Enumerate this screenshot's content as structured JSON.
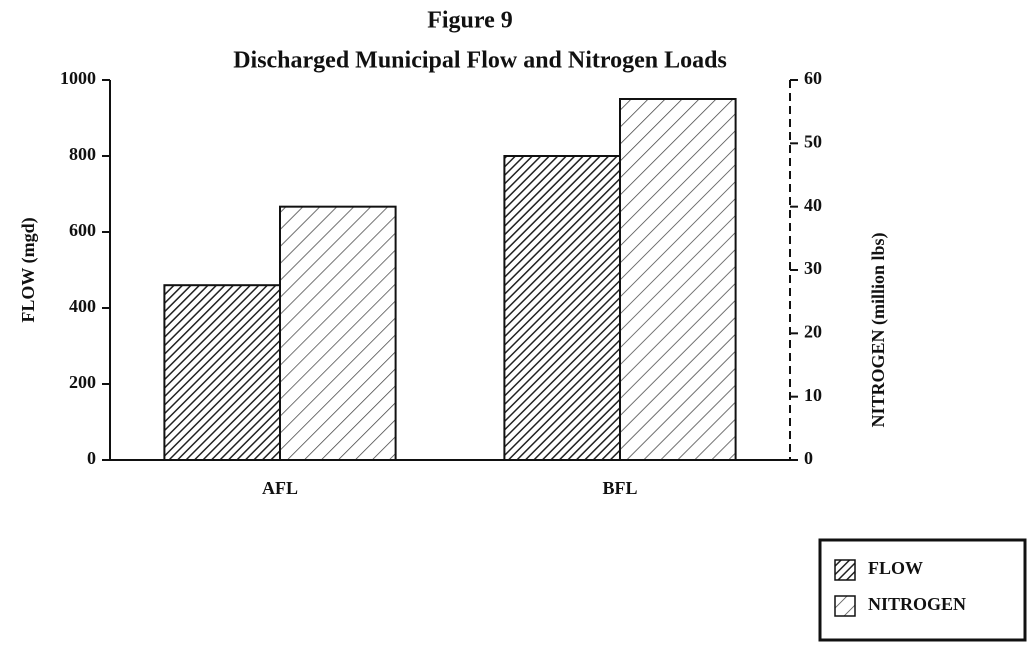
{
  "chart_data": {
    "type": "bar",
    "title": "Figure 9",
    "subtitle": "Discharged Municipal Flow and Nitrogen Loads",
    "ylabel": "FLOW (mgd)",
    "y2label": "NITROGEN (million lbs)",
    "categories": [
      "AFL",
      "BFL"
    ],
    "series": [
      {
        "name": "FLOW",
        "color": "#222222",
        "values": [
          460,
          800
        ]
      },
      {
        "name": "NITROGEN",
        "color": "#444444",
        "axis": "y2",
        "values": [
          40,
          57
        ]
      }
    ],
    "ylim": [
      0,
      1000
    ],
    "yticks": [
      0,
      200,
      400,
      600,
      800,
      1000
    ],
    "y2lim": [
      0,
      60
    ],
    "y2ticks": [
      0,
      10,
      20,
      30,
      40,
      50,
      60
    ],
    "legend": "bottom-right"
  }
}
